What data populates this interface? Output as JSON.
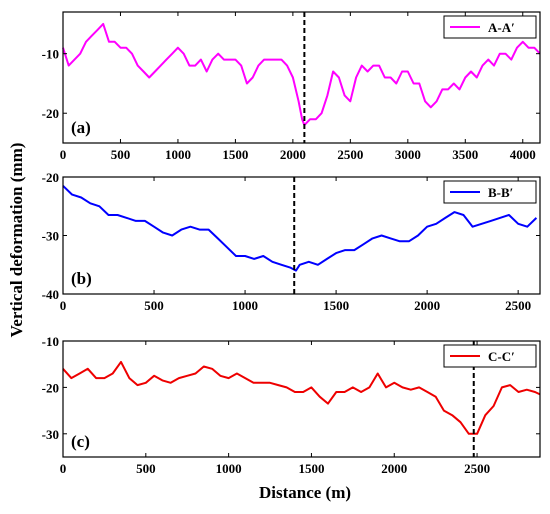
{
  "figure": {
    "ylabel": "Vertical deformation (mm)",
    "xlabel": "Distance (m)"
  },
  "chart_data": [
    {
      "type": "line",
      "panel_label": "(a)",
      "legend": "A-A′",
      "color": "#ff00ff",
      "xlim": [
        0,
        4150
      ],
      "ylim": [
        -25,
        -3
      ],
      "xticks": [
        0,
        500,
        1000,
        1500,
        2000,
        2500,
        3000,
        3500,
        4000
      ],
      "yticks": [
        -10,
        -20
      ],
      "ytick_labels": [
        "-10",
        "-20"
      ],
      "marker_x": 2100,
      "series": [
        {
          "x": [
            0,
            50,
            100,
            150,
            200,
            250,
            300,
            350,
            400,
            450,
            500,
            550,
            600,
            650,
            700,
            750,
            800,
            850,
            900,
            950,
            1000,
            1050,
            1100,
            1150,
            1200,
            1250,
            1300,
            1350,
            1400,
            1450,
            1500,
            1550,
            1600,
            1650,
            1700,
            1750,
            1800,
            1850,
            1900,
            1950,
            2000,
            2050,
            2080,
            2100,
            2150,
            2200,
            2250,
            2300,
            2350,
            2400,
            2450,
            2500,
            2550,
            2600,
            2650,
            2700,
            2750,
            2800,
            2850,
            2900,
            2950,
            3000,
            3050,
            3100,
            3150,
            3200,
            3250,
            3300,
            3350,
            3400,
            3450,
            3500,
            3550,
            3600,
            3650,
            3700,
            3750,
            3800,
            3850,
            3900,
            3950,
            4000,
            4050,
            4100,
            4150
          ],
          "y": [
            -9,
            -12,
            -11,
            -10,
            -8,
            -7,
            -6,
            -5,
            -8,
            -8,
            -9,
            -9,
            -10,
            -12,
            -13,
            -14,
            -13,
            -12,
            -11,
            -10,
            -9,
            -10,
            -12,
            -12,
            -11,
            -13,
            -11,
            -10,
            -11,
            -11,
            -11,
            -12,
            -15,
            -14,
            -12,
            -11,
            -11,
            -11,
            -11,
            -12,
            -14,
            -18,
            -21,
            -22,
            -21,
            -21,
            -20,
            -17,
            -13,
            -14,
            -17,
            -18,
            -14,
            -12,
            -13,
            -12,
            -12,
            -14,
            -14,
            -15,
            -13,
            -13,
            -15,
            -15,
            -18,
            -19,
            -18,
            -16,
            -16,
            -15,
            -16,
            -14,
            -13,
            -14,
            -12,
            -11,
            -12,
            -10,
            -10,
            -11,
            -9,
            -8,
            -9,
            -9,
            -10
          ]
        }
      ]
    },
    {
      "type": "line",
      "panel_label": "(b)",
      "legend": "B-B′",
      "color": "#0000ff",
      "xlim": [
        0,
        2620
      ],
      "ylim": [
        -40,
        -20
      ],
      "xticks": [
        0,
        500,
        1000,
        1500,
        2000,
        2500
      ],
      "yticks": [
        -20,
        -30,
        -40
      ],
      "ytick_labels": [
        "-20",
        "-30",
        "-40"
      ],
      "marker_x": 1270,
      "series": [
        {
          "x": [
            0,
            50,
            100,
            150,
            200,
            250,
            300,
            350,
            400,
            450,
            500,
            550,
            600,
            650,
            700,
            750,
            800,
            850,
            900,
            950,
            1000,
            1050,
            1100,
            1150,
            1200,
            1250,
            1280,
            1300,
            1350,
            1400,
            1450,
            1500,
            1550,
            1600,
            1650,
            1700,
            1750,
            1800,
            1850,
            1900,
            1950,
            2000,
            2050,
            2100,
            2150,
            2200,
            2250,
            2300,
            2350,
            2400,
            2450,
            2500,
            2550,
            2600
          ],
          "y": [
            -21.5,
            -23,
            -23.5,
            -24.5,
            -25,
            -26.5,
            -26.5,
            -27,
            -27.5,
            -27.5,
            -28.5,
            -29.5,
            -30,
            -29,
            -28.5,
            -29,
            -29,
            -30.5,
            -32,
            -33.5,
            -33.5,
            -34,
            -33.5,
            -34.5,
            -35,
            -35.5,
            -36,
            -35,
            -34.5,
            -35,
            -34,
            -33,
            -32.5,
            -32.5,
            -31.5,
            -30.5,
            -30,
            -30.5,
            -31,
            -31,
            -30,
            -28.5,
            -28,
            -27,
            -26,
            -26.5,
            -28.5,
            -28,
            -27.5,
            -27,
            -26.5,
            -28,
            -28.5,
            -27
          ]
        }
      ]
    },
    {
      "type": "line",
      "panel_label": "(c)",
      "legend": "C-C′",
      "color": "#ee0000",
      "xlim": [
        0,
        2880
      ],
      "ylim": [
        -35,
        -10
      ],
      "xticks": [
        0,
        500,
        1000,
        1500,
        2000,
        2500
      ],
      "yticks": [
        -10,
        -20,
        -30
      ],
      "ytick_labels": [
        "-10",
        "-20",
        "-30"
      ],
      "marker_x": 2480,
      "series": [
        {
          "x": [
            0,
            50,
            100,
            150,
            200,
            250,
            300,
            350,
            400,
            450,
            500,
            550,
            600,
            650,
            700,
            750,
            800,
            850,
            900,
            950,
            1000,
            1050,
            1100,
            1150,
            1200,
            1250,
            1300,
            1350,
            1400,
            1450,
            1500,
            1550,
            1600,
            1650,
            1700,
            1750,
            1800,
            1850,
            1900,
            1950,
            2000,
            2050,
            2100,
            2150,
            2200,
            2250,
            2300,
            2350,
            2400,
            2450,
            2500,
            2550,
            2600,
            2650,
            2700,
            2750,
            2800,
            2850,
            2880
          ],
          "y": [
            -16,
            -18,
            -17,
            -16,
            -18,
            -18,
            -17,
            -14.5,
            -18,
            -19.5,
            -19,
            -17.5,
            -18.5,
            -19,
            -18,
            -17.5,
            -17,
            -15.5,
            -16,
            -17.5,
            -18,
            -17,
            -18,
            -19,
            -19,
            -19,
            -19.5,
            -20,
            -21,
            -21,
            -20,
            -22,
            -23.5,
            -21,
            -21,
            -20,
            -21,
            -20,
            -17,
            -20,
            -19,
            -20,
            -20.5,
            -20,
            -21,
            -22,
            -25,
            -26,
            -27.5,
            -30,
            -30,
            -26,
            -24,
            -20,
            -19.5,
            -21,
            -20.5,
            -21,
            -21.5
          ]
        }
      ]
    }
  ]
}
